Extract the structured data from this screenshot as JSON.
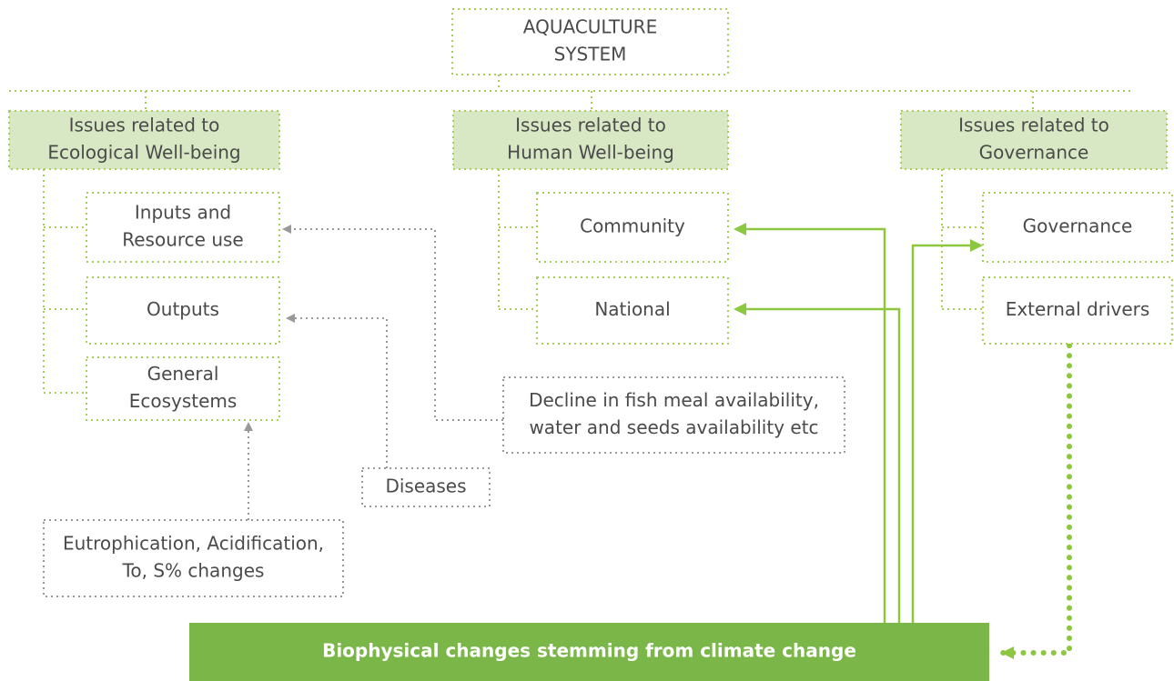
{
  "nodes": [
    {
      "lines": [
        "AQUACULTURE",
        "SYSTEM"
      ]
    },
    {
      "lines": [
        "Issues related to",
        "Ecological Well-being"
      ]
    },
    {
      "lines": [
        "Issues related to",
        "Human Well-being"
      ]
    },
    {
      "lines": [
        "Issues related to",
        "Governance"
      ]
    },
    {
      "lines": [
        "Inputs and",
        "Resource use"
      ]
    },
    {
      "lines": [
        "Outputs"
      ]
    },
    {
      "lines": [
        "General",
        "Ecosystems"
      ]
    },
    {
      "lines": [
        "Community"
      ]
    },
    {
      "lines": [
        "National"
      ]
    },
    {
      "lines": [
        "Governance"
      ]
    },
    {
      "lines": [
        "External drivers"
      ]
    },
    {
      "lines": [
        "Decline in fish meal availability,",
        "water and seeds availability etc"
      ]
    },
    {
      "lines": [
        "Diseases"
      ]
    },
    {
      "lines": [
        "Eutrophication, Acidification,",
        "To, S% changes"
      ]
    },
    {
      "lines": [
        "Biophysical changes stemming from climate change"
      ]
    }
  ]
}
